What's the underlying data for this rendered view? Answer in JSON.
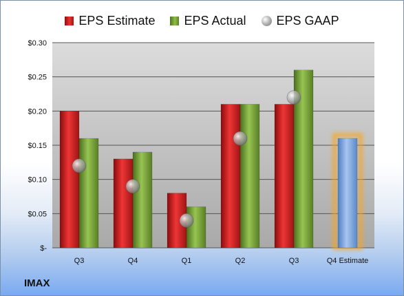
{
  "chart_data": {
    "type": "bar",
    "categories": [
      "Q3",
      "Q4",
      "Q1",
      "Q2",
      "Q3",
      "Q4 Estimate"
    ],
    "series": [
      {
        "name": "EPS Estimate",
        "type": "bar",
        "color": "#d42020",
        "values": [
          0.2,
          0.13,
          0.08,
          0.21,
          0.21,
          null
        ]
      },
      {
        "name": "EPS Actual",
        "type": "bar",
        "color": "#7aa33a",
        "values": [
          0.16,
          0.14,
          0.06,
          0.21,
          0.26,
          null
        ]
      },
      {
        "name": "EPS GAAP",
        "type": "point",
        "color": "#a9a9a9",
        "values": [
          0.12,
          0.09,
          0.04,
          0.16,
          0.22,
          null
        ]
      },
      {
        "name": "Q4 Estimate",
        "type": "bar",
        "color": "#7aa3dc",
        "highlight": "#f5a623",
        "values": [
          null,
          null,
          null,
          null,
          null,
          0.16
        ]
      }
    ],
    "yticks": [
      {
        "value": 0.0,
        "label": "$-"
      },
      {
        "value": 0.05,
        "label": "$0.05"
      },
      {
        "value": 0.1,
        "label": "$0.10"
      },
      {
        "value": 0.15,
        "label": "$0.15"
      },
      {
        "value": 0.2,
        "label": "$0.20"
      },
      {
        "value": 0.25,
        "label": "$0.25"
      },
      {
        "value": 0.3,
        "label": "$0.30"
      }
    ],
    "ylim": [
      0,
      0.3
    ],
    "grid": true,
    "legend": "top-center",
    "title": "",
    "xlabel": "",
    "ylabel": ""
  },
  "legend": {
    "estimate_label": "EPS Estimate",
    "actual_label": "EPS Actual",
    "gaap_label": "EPS GAAP"
  },
  "company": "IMAX"
}
